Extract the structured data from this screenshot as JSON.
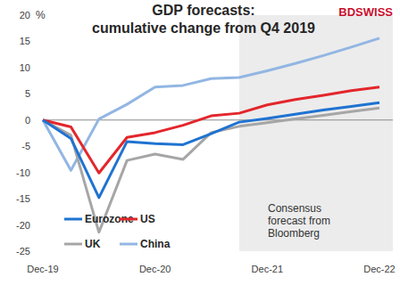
{
  "chart_data": {
    "type": "line",
    "title": "GDP forecasts:",
    "subtitle": "cumulative change from Q4 2019",
    "y_label": "%",
    "logo": "BDSWISS",
    "categories": [
      "Dec-19",
      null,
      null,
      null,
      "Dec-20",
      null,
      null,
      null,
      "Dec-21",
      null,
      null,
      null,
      "Dec-22"
    ],
    "series": [
      {
        "name": "Eurozone",
        "color": "#1f73d1",
        "values": [
          0,
          -3.5,
          -14.8,
          -4.1,
          -4.5,
          -4.7,
          -2.6,
          -0.4,
          0.3,
          1.1,
          1.9,
          2.6,
          3.3
        ]
      },
      {
        "name": "US",
        "color": "#e3262b",
        "values": [
          0,
          -1.3,
          -10.1,
          -3.3,
          -2.4,
          -1.0,
          0.8,
          1.3,
          2.9,
          3.9,
          4.7,
          5.6,
          6.3
        ]
      },
      {
        "name": "UK",
        "color": "#a6a6a6",
        "values": [
          0,
          -2.9,
          -21.4,
          -7.7,
          -6.5,
          -7.5,
          -2.4,
          -1.2,
          -0.5,
          0.2,
          0.9,
          1.6,
          2.3
        ]
      },
      {
        "name": "China",
        "color": "#92b6e3",
        "values": [
          0,
          -9.6,
          0.2,
          3.0,
          6.3,
          6.6,
          7.9,
          8.1,
          9.4,
          10.8,
          12.3,
          13.9,
          15.6
        ]
      }
    ],
    "ylim": [
      -25,
      20
    ],
    "yticks": [
      -25,
      -20,
      -15,
      -10,
      -5,
      0,
      5,
      10,
      15,
      20
    ],
    "grid": false,
    "legend": "bottom-left",
    "annotation": {
      "text": [
        "Consensus",
        "forecast from",
        "Bloomberg"
      ],
      "x_start": 7
    }
  }
}
